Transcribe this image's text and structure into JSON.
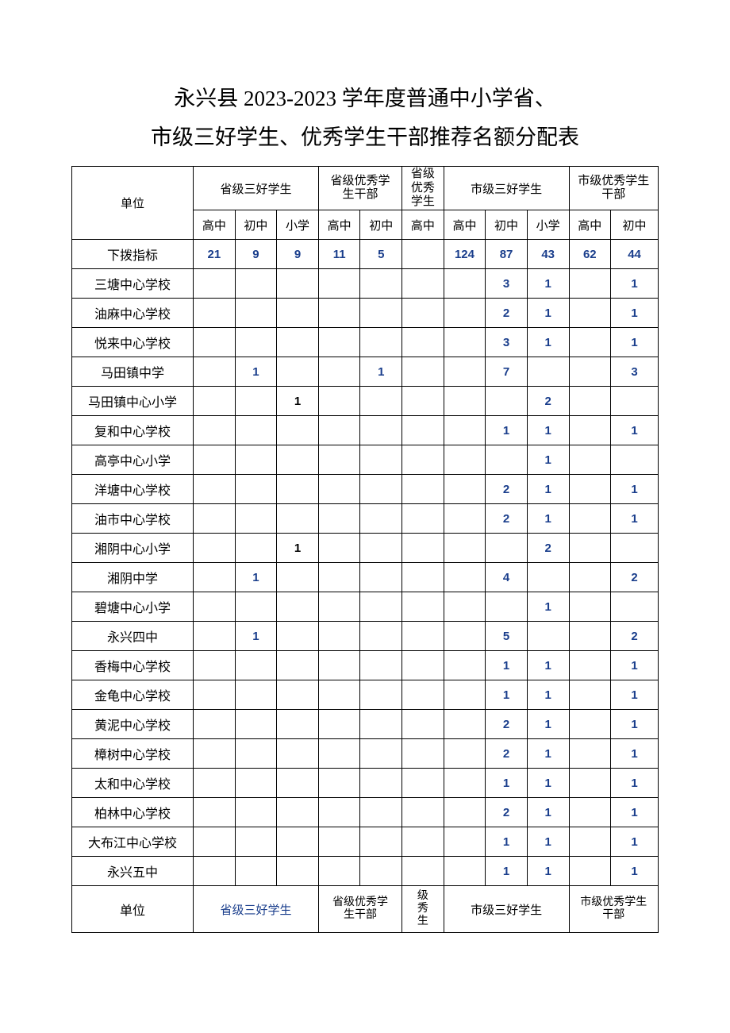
{
  "title_line1": "永兴县 2023-2023 学年度普通中小学省、",
  "title_line2": "市级三好学生、优秀学生干部推荐名额分配表",
  "headers": {
    "unit": "单位",
    "group1": "省级三好学生",
    "group2": "省级优秀学\n生干部",
    "group3": "省级\n优秀\n学生",
    "group4": "市级三好学生",
    "group5": "市级优秀学生\n干部",
    "sub": {
      "gz": "高中",
      "cz": "初中",
      "xx": "小学"
    }
  },
  "quota_label": "下拨指标",
  "quota": {
    "g1_gz": "21",
    "g1_cz": "9",
    "g1_xx": "9",
    "g2_gz": "11",
    "g2_cz": "5",
    "g3_gz": "",
    "g4_gz": "124",
    "g4_cz": "87",
    "g4_xx": "43",
    "g5_gz": "62",
    "g5_cz": "44"
  },
  "rows": [
    {
      "name": "三塘中心学校",
      "g1_gz": "",
      "g1_cz": "",
      "g1_xx": "",
      "g2_gz": "",
      "g2_cz": "",
      "g3_gz": "",
      "g4_gz": "",
      "g4_cz": "3",
      "g4_xx": "1",
      "g5_gz": "",
      "g5_cz": "1"
    },
    {
      "name": "油麻中心学校",
      "g1_gz": "",
      "g1_cz": "",
      "g1_xx": "",
      "g2_gz": "",
      "g2_cz": "",
      "g3_gz": "",
      "g4_gz": "",
      "g4_cz": "2",
      "g4_xx": "1",
      "g5_gz": "",
      "g5_cz": "1"
    },
    {
      "name": "悦来中心学校",
      "g1_gz": "",
      "g1_cz": "",
      "g1_xx": "",
      "g2_gz": "",
      "g2_cz": "",
      "g3_gz": "",
      "g4_gz": "",
      "g4_cz": "3",
      "g4_xx": "1",
      "g5_gz": "",
      "g5_cz": "1"
    },
    {
      "name": "马田镇中学",
      "g1_gz": "",
      "g1_cz": "1",
      "g1_xx": "",
      "g2_gz": "",
      "g2_cz": "1",
      "g3_gz": "",
      "g4_gz": "",
      "g4_cz": "7",
      "g4_xx": "",
      "g5_gz": "",
      "g5_cz": "3"
    },
    {
      "name": "马田镇中心小学",
      "g1_gz": "",
      "g1_cz": "",
      "g1_xx": "1",
      "g2_gz": "",
      "g2_cz": "",
      "g3_gz": "",
      "g4_gz": "",
      "g4_cz": "",
      "g4_xx": "2",
      "g5_gz": "",
      "g5_cz": ""
    },
    {
      "name": "复和中心学校",
      "g1_gz": "",
      "g1_cz": "",
      "g1_xx": "",
      "g2_gz": "",
      "g2_cz": "",
      "g3_gz": "",
      "g4_gz": "",
      "g4_cz": "1",
      "g4_xx": "1",
      "g5_gz": "",
      "g5_cz": "1"
    },
    {
      "name": "高亭中心小学",
      "g1_gz": "",
      "g1_cz": "",
      "g1_xx": "",
      "g2_gz": "",
      "g2_cz": "",
      "g3_gz": "",
      "g4_gz": "",
      "g4_cz": "",
      "g4_xx": "1",
      "g5_gz": "",
      "g5_cz": ""
    },
    {
      "name": "洋塘中心学校",
      "g1_gz": "",
      "g1_cz": "",
      "g1_xx": "",
      "g2_gz": "",
      "g2_cz": "",
      "g3_gz": "",
      "g4_gz": "",
      "g4_cz": "2",
      "g4_xx": "1",
      "g5_gz": "",
      "g5_cz": "1"
    },
    {
      "name": "油市中心学校",
      "g1_gz": "",
      "g1_cz": "",
      "g1_xx": "",
      "g2_gz": "",
      "g2_cz": "",
      "g3_gz": "",
      "g4_gz": "",
      "g4_cz": "2",
      "g4_xx": "1",
      "g5_gz": "",
      "g5_cz": "1"
    },
    {
      "name": "湘阴中心小学",
      "g1_gz": "",
      "g1_cz": "",
      "g1_xx": "1",
      "g2_gz": "",
      "g2_cz": "",
      "g3_gz": "",
      "g4_gz": "",
      "g4_cz": "",
      "g4_xx": "2",
      "g5_gz": "",
      "g5_cz": ""
    },
    {
      "name": "湘阴中学",
      "g1_gz": "",
      "g1_cz": "1",
      "g1_xx": "",
      "g2_gz": "",
      "g2_cz": "",
      "g3_gz": "",
      "g4_gz": "",
      "g4_cz": "4",
      "g4_xx": "",
      "g5_gz": "",
      "g5_cz": "2"
    },
    {
      "name": "碧塘中心小学",
      "g1_gz": "",
      "g1_cz": "",
      "g1_xx": "",
      "g2_gz": "",
      "g2_cz": "",
      "g3_gz": "",
      "g4_gz": "",
      "g4_cz": "",
      "g4_xx": "1",
      "g5_gz": "",
      "g5_cz": ""
    },
    {
      "name": "永兴四中",
      "g1_gz": "",
      "g1_cz": "1",
      "g1_xx": "",
      "g2_gz": "",
      "g2_cz": "",
      "g3_gz": "",
      "g4_gz": "",
      "g4_cz": "5",
      "g4_xx": "",
      "g5_gz": "",
      "g5_cz": "2"
    },
    {
      "name": "香梅中心学校",
      "g1_gz": "",
      "g1_cz": "",
      "g1_xx": "",
      "g2_gz": "",
      "g2_cz": "",
      "g3_gz": "",
      "g4_gz": "",
      "g4_cz": "1",
      "g4_xx": "1",
      "g5_gz": "",
      "g5_cz": "1"
    },
    {
      "name": "金龟中心学校",
      "g1_gz": "",
      "g1_cz": "",
      "g1_xx": "",
      "g2_gz": "",
      "g2_cz": "",
      "g3_gz": "",
      "g4_gz": "",
      "g4_cz": "1",
      "g4_xx": "1",
      "g5_gz": "",
      "g5_cz": "1"
    },
    {
      "name": "黄泥中心学校",
      "g1_gz": "",
      "g1_cz": "",
      "g1_xx": "",
      "g2_gz": "",
      "g2_cz": "",
      "g3_gz": "",
      "g4_gz": "",
      "g4_cz": "2",
      "g4_xx": "1",
      "g5_gz": "",
      "g5_cz": "1"
    },
    {
      "name": "樟树中心学校",
      "g1_gz": "",
      "g1_cz": "",
      "g1_xx": "",
      "g2_gz": "",
      "g2_cz": "",
      "g3_gz": "",
      "g4_gz": "",
      "g4_cz": "2",
      "g4_xx": "1",
      "g5_gz": "",
      "g5_cz": "1"
    },
    {
      "name": "太和中心学校",
      "g1_gz": "",
      "g1_cz": "",
      "g1_xx": "",
      "g2_gz": "",
      "g2_cz": "",
      "g3_gz": "",
      "g4_gz": "",
      "g4_cz": "1",
      "g4_xx": "1",
      "g5_gz": "",
      "g5_cz": "1"
    },
    {
      "name": "柏林中心学校",
      "g1_gz": "",
      "g1_cz": "",
      "g1_xx": "",
      "g2_gz": "",
      "g2_cz": "",
      "g3_gz": "",
      "g4_gz": "",
      "g4_cz": "2",
      "g4_xx": "1",
      "g5_gz": "",
      "g5_cz": "1"
    },
    {
      "name": "大布江中心学校",
      "g1_gz": "",
      "g1_cz": "",
      "g1_xx": "",
      "g2_gz": "",
      "g2_cz": "",
      "g3_gz": "",
      "g4_gz": "",
      "g4_cz": "1",
      "g4_xx": "1",
      "g5_gz": "",
      "g5_cz": "1"
    },
    {
      "name": "永兴五中",
      "g1_gz": "",
      "g1_cz": "",
      "g1_xx": "",
      "g2_gz": "",
      "g2_cz": "",
      "g3_gz": "",
      "g4_gz": "",
      "g4_cz": "1",
      "g4_xx": "1",
      "g5_gz": "",
      "g5_cz": "1"
    }
  ],
  "footer": {
    "unit": "单位",
    "g1": "省级三好学生",
    "g2": "省级优秀学\n生干部",
    "g3": "级\n秀\n生",
    "g4": "市级三好学生",
    "g5": "市级优秀学生\n干部"
  }
}
